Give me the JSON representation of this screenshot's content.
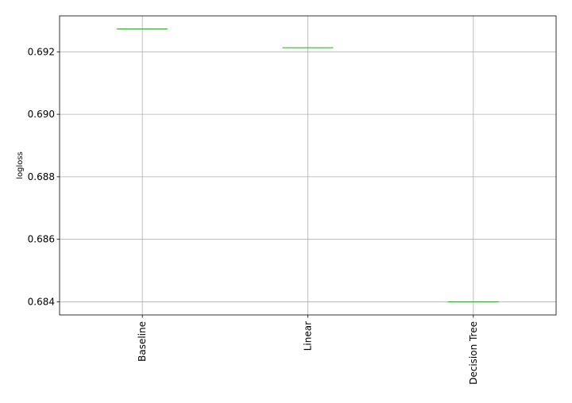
{
  "chart_data": {
    "type": "box",
    "categories": [
      "Baseline",
      "Linear",
      "Decision Tree"
    ],
    "values": [
      0.69273,
      0.69213,
      0.684
    ],
    "title": "",
    "xlabel": "",
    "ylabel": "logloss",
    "ylim": [
      0.68358,
      0.69315
    ],
    "yticks": [
      0.684,
      0.686,
      0.688,
      0.69,
      0.692
    ],
    "ytick_labels": [
      "0.684",
      "0.686",
      "0.688",
      "0.690",
      "0.692"
    ],
    "grid": true,
    "median_color": "#2ca02c",
    "grid_color": "#b0b0b0"
  }
}
